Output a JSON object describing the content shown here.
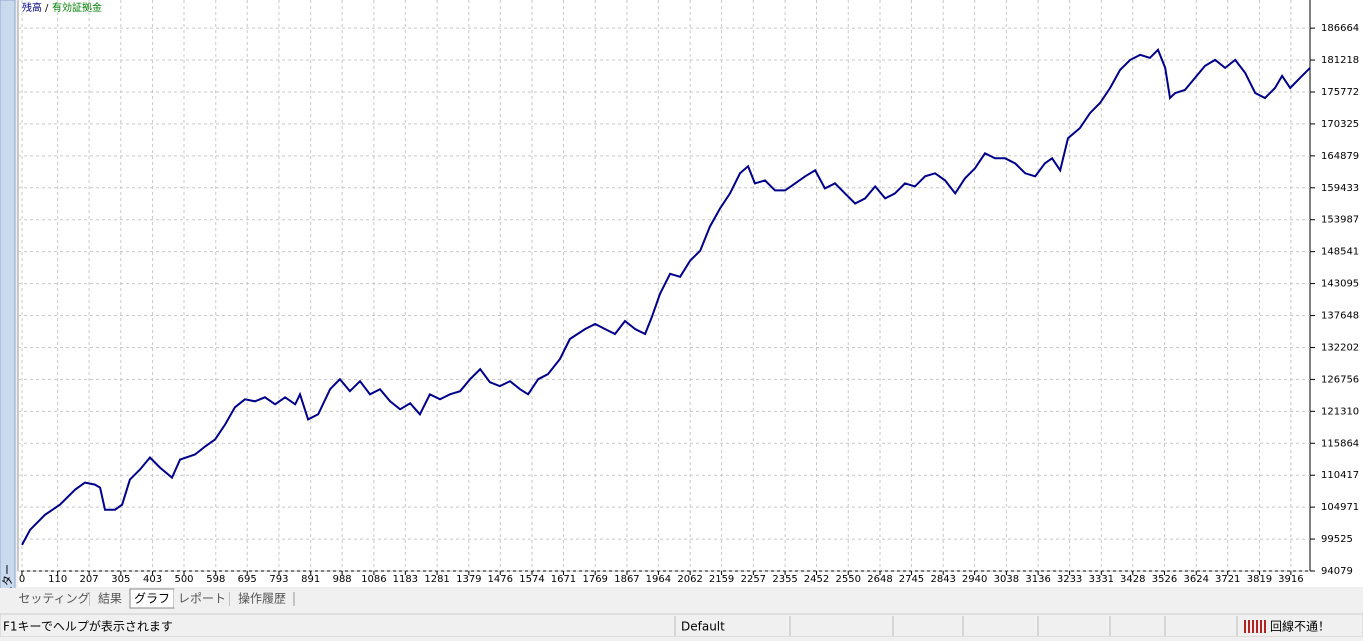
{
  "chart_data": {
    "type": "line",
    "legend_separator": "/",
    "legend_extra": {
      "name": "有効証拠金",
      "color": "#008000"
    },
    "x": [
      0,
      25,
      71,
      117,
      164,
      194,
      225,
      241,
      256,
      287,
      309,
      333,
      364,
      395,
      426,
      463,
      488,
      534,
      565,
      596,
      627,
      657,
      688,
      719,
      750,
      781,
      812,
      843,
      858,
      883,
      914,
      951,
      981,
      1012,
      1043,
      1074,
      1105,
      1136,
      1167,
      1198,
      1228,
      1259,
      1290,
      1321,
      1352,
      1383,
      1414,
      1444,
      1475,
      1506,
      1537,
      1562,
      1593,
      1623,
      1660,
      1691,
      1738,
      1769,
      1799,
      1830,
      1861,
      1892,
      1923,
      1944,
      1969,
      2000,
      2031,
      2062,
      2093,
      2123,
      2154,
      2185,
      2216,
      2241,
      2262,
      2293,
      2324,
      2355,
      2386,
      2417,
      2448,
      2478,
      2509,
      2540,
      2571,
      2602,
      2633,
      2664,
      2694,
      2725,
      2756,
      2787,
      2818,
      2849,
      2880,
      2910,
      2941,
      2972,
      3003,
      3034,
      3065,
      3096,
      3127,
      3157,
      3179,
      3204,
      3228,
      3265,
      3296,
      3327,
      3358,
      3389,
      3420,
      3451,
      3481,
      3506,
      3528,
      3543,
      3559,
      3589,
      3620,
      3651,
      3682,
      3713,
      3744,
      3775,
      3806,
      3836,
      3867,
      3889,
      3914,
      3944,
      3975
    ],
    "series": [
      {
        "name": "残高",
        "color": "#00008b",
        "values": [
          98532,
          101101,
          103670,
          105382,
          107951,
          109150,
          108807,
          108294,
          104526,
          104526,
          105382,
          109664,
          111376,
          113431,
          111719,
          110006,
          113089,
          113945,
          115315,
          116514,
          119083,
          121994,
          123364,
          123022,
          123707,
          122508,
          123707,
          122508,
          124221,
          119939,
          120796,
          125077,
          126790,
          124735,
          126447,
          124221,
          125077,
          123022,
          121652,
          122679,
          120796,
          124221,
          123364,
          124221,
          124735,
          126790,
          128502,
          126276,
          125591,
          126447,
          125077,
          124221,
          126790,
          127646,
          130215,
          133640,
          135353,
          136209,
          135353,
          134496,
          136723,
          135353,
          134496,
          137408,
          141347,
          144772,
          144258,
          146998,
          148711,
          152821,
          155904,
          158473,
          161898,
          163097,
          160185,
          160699,
          158987,
          158987,
          160185,
          161384,
          162412,
          159329,
          160185,
          158473,
          156760,
          157616,
          159672,
          157616,
          158473,
          160185,
          159672,
          161384,
          161898,
          160699,
          158473,
          161041,
          162755,
          165323,
          164467,
          164467,
          163611,
          161898,
          161384,
          163611,
          164467,
          162412,
          167892,
          169605,
          172174,
          173886,
          176455,
          179538,
          181250,
          182107,
          181593,
          182963,
          179880,
          174742,
          175599,
          176113,
          178168,
          180223,
          181250,
          179880,
          181250,
          179024,
          175599,
          174742,
          176455,
          178510,
          176455,
          178168,
          179880
        ]
      }
    ],
    "xlim": [
      0,
      3975
    ],
    "ylim": [
      94079,
      191459
    ],
    "xticks": [
      0,
      110,
      207,
      305,
      403,
      500,
      598,
      695,
      793,
      891,
      988,
      1086,
      1183,
      1281,
      1379,
      1476,
      1574,
      1671,
      1769,
      1867,
      1964,
      2062,
      2159,
      2257,
      2355,
      2452,
      2550,
      2648,
      2745,
      2843,
      2940,
      3038,
      3136,
      3233,
      3331,
      3428,
      3526,
      3624,
      3721,
      3819,
      3916
    ],
    "yticks": [
      94079,
      99525,
      104971,
      110417,
      115864,
      121310,
      126756,
      132202,
      137648,
      143095,
      148541,
      153987,
      159433,
      164879,
      170325,
      175772,
      181218,
      186664
    ],
    "grid": true
  },
  "ui": {
    "side_tab": "テスター",
    "tabs": [
      "セッティング",
      "結果",
      "グラフ",
      "レポート",
      "操作履歴"
    ],
    "active_tab": 2,
    "status": {
      "help": "F1キーでヘルプが表示されます",
      "profile": "Default",
      "connection": "回線不通！"
    }
  }
}
